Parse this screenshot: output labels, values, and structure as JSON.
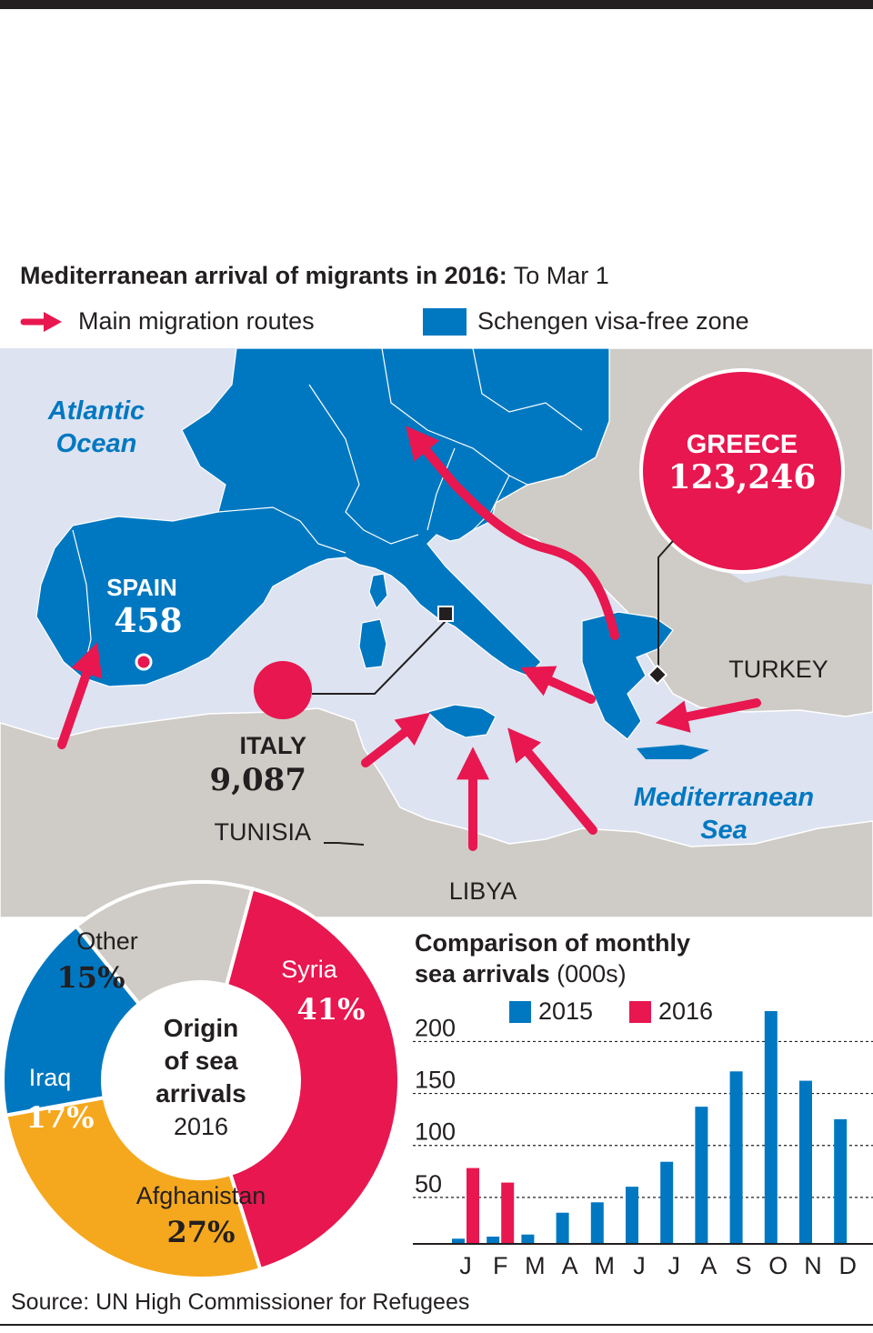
{
  "title": {
    "bold": "Mediterranean arrival of migrants in 2016:",
    "rest": " To Mar 1"
  },
  "legend": {
    "routes_label": "Main migration routes",
    "zone_label": "Schengen visa-free zone"
  },
  "colors": {
    "schengen": "#0078c1",
    "land": "#cfccc7",
    "sea": "#dde3f1",
    "route": "#e8174f",
    "afghanistan": "#f5a81d",
    "other": "#cfccc7"
  },
  "map": {
    "atlantic_line1": "Atlantic",
    "atlantic_line2": "Ocean",
    "med_line1": "Mediterranean",
    "med_line2": "Sea",
    "spain_name": "SPAIN",
    "spain_value": "458",
    "italy_name": "ITALY",
    "italy_value": "9,087",
    "greece_name": "GREECE",
    "greece_value": "123,246",
    "turkey": "TURKEY",
    "tunisia": "TUNISIA",
    "libya": "LIBYA"
  },
  "donut": {
    "center_line1": "Origin",
    "center_line2": "of sea",
    "center_line3": "arrivals",
    "center_year": "2016",
    "segments": [
      {
        "name": "Syria",
        "pct": 41,
        "label": "41%"
      },
      {
        "name": "Afghanistan",
        "pct": 27,
        "label": "27%"
      },
      {
        "name": "Iraq",
        "pct": 17,
        "label": "17%"
      },
      {
        "name": "Other",
        "pct": 15,
        "label": "15%"
      }
    ]
  },
  "chart_title": {
    "line1": "Comparison of monthly",
    "line2_bold": "sea arrivals",
    "line2_rest": " (000s)"
  },
  "chart_data": {
    "type": "bar",
    "title": "Comparison of monthly sea arrivals (000s)",
    "categories": [
      "J",
      "F",
      "M",
      "A",
      "M",
      "J",
      "J",
      "A",
      "S",
      "O",
      "N",
      "D"
    ],
    "series": [
      {
        "name": "2015",
        "color": "#0078c1",
        "values": [
          5,
          7,
          9,
          30,
          40,
          55,
          79,
          132,
          166,
          224,
          157,
          120
        ]
      },
      {
        "name": "2016",
        "color": "#e8174f",
        "values": [
          73,
          59,
          null,
          null,
          null,
          null,
          null,
          null,
          null,
          null,
          null,
          null
        ]
      }
    ],
    "yticks": [
      "200",
      "150",
      "100",
      "50"
    ],
    "ylim": [
      0,
      220
    ],
    "grid": true,
    "legend_placement": "top"
  },
  "source": "Source: UN High Commissioner for Refugees"
}
